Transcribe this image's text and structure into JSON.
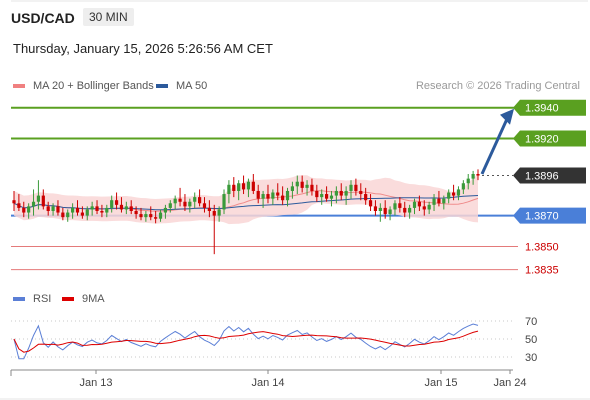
{
  "header": {
    "symbol": "USD/CAD",
    "timeframe": "30 MIN",
    "timestamp": "Thursday, January 15, 2026 5:26:56 AM CET"
  },
  "legend": {
    "ma20": {
      "label": "MA 20 + Bollinger Bands",
      "color": "#f08080"
    },
    "ma50": {
      "label": "MA 50",
      "color": "#2c5a9c"
    }
  },
  "rsi_legend": {
    "rsi": {
      "label": "RSI",
      "color": "#5b7fd6"
    },
    "ma9": {
      "label": "9MA",
      "color": "#dd0000"
    }
  },
  "credit": "Research © 2026 Trading Central",
  "colors": {
    "up": "#3a9a3a",
    "down": "#cc0000",
    "support": "#4a7fd8",
    "target": "#5aa020",
    "pivot": "#333333",
    "band": "#f9d6d6"
  },
  "chart_data": {
    "type": "candlestick",
    "pair": "USD/CAD",
    "timeframe": "30 MIN",
    "ylim": [
      1.3825,
      1.3945
    ],
    "current_price": "1.3896",
    "levels": [
      {
        "value": 1.394,
        "label": "1.3940",
        "kind": "target"
      },
      {
        "value": 1.392,
        "label": "1.3920",
        "kind": "target"
      },
      {
        "value": 1.3896,
        "label": "1.3896",
        "kind": "pivot"
      },
      {
        "value": 1.387,
        "label": "1.3870",
        "kind": "support"
      },
      {
        "value": 1.385,
        "label": "1.3850",
        "kind": "resistance"
      },
      {
        "value": 1.3835,
        "label": "1.3835",
        "kind": "resistance"
      }
    ],
    "x_ticks": [
      "Jan 13",
      "Jan 14",
      "Jan 15",
      "Jan 24"
    ],
    "rsi": {
      "ylim": [
        20,
        80
      ],
      "ticks": [
        "70",
        "50",
        "30"
      ]
    },
    "candles": [
      [
        1.388,
        1.3886,
        1.3873,
        1.3878
      ],
      [
        1.3878,
        1.3884,
        1.3873,
        1.3875
      ],
      [
        1.3875,
        1.3879,
        1.3869,
        1.3872
      ],
      [
        1.3872,
        1.3878,
        1.3868,
        1.3876
      ],
      [
        1.3876,
        1.3887,
        1.387,
        1.3879
      ],
      [
        1.3879,
        1.3893,
        1.3874,
        1.3883
      ],
      [
        1.3883,
        1.3887,
        1.3874,
        1.3876
      ],
      [
        1.3876,
        1.3879,
        1.387,
        1.3873
      ],
      [
        1.3873,
        1.3878,
        1.387,
        1.3876
      ],
      [
        1.3876,
        1.388,
        1.387,
        1.3872
      ],
      [
        1.3872,
        1.3875,
        1.3867,
        1.3869
      ],
      [
        1.3869,
        1.3874,
        1.3866,
        1.3872
      ],
      [
        1.3872,
        1.3878,
        1.3868,
        1.3875
      ],
      [
        1.3875,
        1.388,
        1.387,
        1.3872
      ],
      [
        1.3872,
        1.3876,
        1.3868,
        1.387
      ],
      [
        1.387,
        1.3876,
        1.3867,
        1.3874
      ],
      [
        1.3874,
        1.3879,
        1.387,
        1.3876
      ],
      [
        1.3876,
        1.388,
        1.3871,
        1.3873
      ],
      [
        1.3873,
        1.3877,
        1.3869,
        1.3872
      ],
      [
        1.3872,
        1.3877,
        1.3869,
        1.3875
      ],
      [
        1.3875,
        1.3883,
        1.3872,
        1.388
      ],
      [
        1.388,
        1.3885,
        1.3874,
        1.3877
      ],
      [
        1.3877,
        1.3882,
        1.3872,
        1.3874
      ],
      [
        1.3874,
        1.3879,
        1.3871,
        1.3876
      ],
      [
        1.3876,
        1.388,
        1.3871,
        1.3873
      ],
      [
        1.3873,
        1.3876,
        1.3868,
        1.3871
      ],
      [
        1.3871,
        1.3875,
        1.3867,
        1.3869
      ],
      [
        1.3869,
        1.3873,
        1.3866,
        1.3871
      ],
      [
        1.3871,
        1.3876,
        1.3867,
        1.3869
      ],
      [
        1.3869,
        1.3873,
        1.3865,
        1.3868
      ],
      [
        1.3868,
        1.3874,
        1.3866,
        1.3872
      ],
      [
        1.3872,
        1.3877,
        1.3868,
        1.3875
      ],
      [
        1.3875,
        1.388,
        1.3872,
        1.3878
      ],
      [
        1.3878,
        1.3883,
        1.3874,
        1.3881
      ],
      [
        1.3881,
        1.3888,
        1.3876,
        1.3879
      ],
      [
        1.3879,
        1.3884,
        1.3873,
        1.3876
      ],
      [
        1.3876,
        1.3881,
        1.3872,
        1.3879
      ],
      [
        1.3879,
        1.3885,
        1.3875,
        1.3882
      ],
      [
        1.3882,
        1.3887,
        1.3876,
        1.3878
      ],
      [
        1.3878,
        1.3882,
        1.3872,
        1.3875
      ],
      [
        1.3875,
        1.388,
        1.3869,
        1.3873
      ],
      [
        1.3873,
        1.3877,
        1.3845,
        1.387
      ],
      [
        1.387,
        1.3876,
        1.3866,
        1.3874
      ],
      [
        1.3874,
        1.3887,
        1.3871,
        1.3884
      ],
      [
        1.3884,
        1.3893,
        1.3878,
        1.389
      ],
      [
        1.389,
        1.3895,
        1.3882,
        1.3886
      ],
      [
        1.3886,
        1.3893,
        1.388,
        1.3891
      ],
      [
        1.3891,
        1.3896,
        1.3884,
        1.3887
      ],
      [
        1.3887,
        1.3894,
        1.3882,
        1.3892
      ],
      [
        1.3892,
        1.3897,
        1.3884,
        1.3886
      ],
      [
        1.3886,
        1.389,
        1.3878,
        1.3881
      ],
      [
        1.3881,
        1.3886,
        1.3875,
        1.3884
      ],
      [
        1.3884,
        1.389,
        1.3878,
        1.3881
      ],
      [
        1.3881,
        1.3887,
        1.3877,
        1.3885
      ],
      [
        1.3885,
        1.3891,
        1.388,
        1.3883
      ],
      [
        1.3883,
        1.3889,
        1.3877,
        1.388
      ],
      [
        1.388,
        1.3888,
        1.3876,
        1.3886
      ],
      [
        1.3886,
        1.3892,
        1.3881,
        1.3889
      ],
      [
        1.3889,
        1.3896,
        1.3884,
        1.3892
      ],
      [
        1.3892,
        1.3896,
        1.3885,
        1.3888
      ],
      [
        1.3888,
        1.3893,
        1.3883,
        1.389
      ],
      [
        1.389,
        1.3894,
        1.3883,
        1.3886
      ],
      [
        1.3886,
        1.389,
        1.3879,
        1.3882
      ],
      [
        1.3882,
        1.3887,
        1.3877,
        1.3884
      ],
      [
        1.3884,
        1.3889,
        1.3879,
        1.3881
      ],
      [
        1.3881,
        1.3886,
        1.3876,
        1.3883
      ],
      [
        1.3883,
        1.3889,
        1.3878,
        1.3886
      ],
      [
        1.3886,
        1.3891,
        1.388,
        1.3883
      ],
      [
        1.3883,
        1.3889,
        1.3877,
        1.3886
      ],
      [
        1.3886,
        1.3893,
        1.3881,
        1.389
      ],
      [
        1.389,
        1.3894,
        1.3883,
        1.3886
      ],
      [
        1.3886,
        1.3891,
        1.388,
        1.3884
      ],
      [
        1.3884,
        1.3888,
        1.3877,
        1.388
      ],
      [
        1.388,
        1.3884,
        1.3873,
        1.3876
      ],
      [
        1.3876,
        1.388,
        1.387,
        1.3873
      ],
      [
        1.3873,
        1.3878,
        1.3866,
        1.3875
      ],
      [
        1.3875,
        1.388,
        1.3868,
        1.3871
      ],
      [
        1.3871,
        1.3876,
        1.3867,
        1.3874
      ],
      [
        1.3874,
        1.388,
        1.387,
        1.3878
      ],
      [
        1.3878,
        1.3882,
        1.3872,
        1.3875
      ],
      [
        1.3875,
        1.3879,
        1.3869,
        1.3872
      ],
      [
        1.3872,
        1.3877,
        1.3868,
        1.3875
      ],
      [
        1.3875,
        1.3881,
        1.3871,
        1.3879
      ],
      [
        1.3879,
        1.3883,
        1.3873,
        1.3876
      ],
      [
        1.3876,
        1.388,
        1.387,
        1.3874
      ],
      [
        1.3874,
        1.3879,
        1.3871,
        1.3877
      ],
      [
        1.3877,
        1.3884,
        1.3873,
        1.3881
      ],
      [
        1.3881,
        1.3886,
        1.3876,
        1.3878
      ],
      [
        1.3878,
        1.3883,
        1.3874,
        1.3881
      ],
      [
        1.3881,
        1.3887,
        1.3878,
        1.3885
      ],
      [
        1.3885,
        1.389,
        1.388,
        1.3883
      ],
      [
        1.3883,
        1.3889,
        1.388,
        1.3887
      ],
      [
        1.3887,
        1.3893,
        1.3884,
        1.3891
      ],
      [
        1.3891,
        1.3897,
        1.3887,
        1.3894
      ],
      [
        1.3894,
        1.3899,
        1.389,
        1.3897
      ],
      [
        1.3897,
        1.39,
        1.3893,
        1.3896
      ]
    ]
  }
}
